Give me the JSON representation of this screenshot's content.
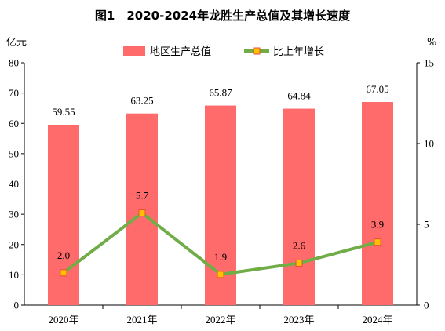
{
  "chart_data": {
    "type": "bar",
    "title": "图1　2020-2024年龙胜生产总值及其增长速度",
    "categories": [
      "2020年",
      "2021年",
      "2022年",
      "2023年",
      "2024年"
    ],
    "left_axis": {
      "unit": "亿元",
      "range": [
        0,
        80
      ],
      "ticks": [
        0,
        10,
        20,
        30,
        40,
        50,
        60,
        70,
        80
      ]
    },
    "right_axis": {
      "unit": "%",
      "range": [
        0,
        15
      ],
      "ticks": [
        0,
        5,
        10,
        15
      ]
    },
    "series": [
      {
        "name": "地区生产总值",
        "type": "bar",
        "axis": "left",
        "values": [
          59.55,
          63.25,
          65.87,
          64.84,
          67.05
        ],
        "labels": [
          "59.55",
          "63.25",
          "65.87",
          "64.84",
          "67.05"
        ]
      },
      {
        "name": "比上年增长",
        "type": "line",
        "axis": "right",
        "values": [
          2.0,
          5.7,
          1.9,
          2.6,
          3.9
        ],
        "labels": [
          "2.0",
          "5.7",
          "1.9",
          "2.6",
          "3.9"
        ]
      }
    ],
    "legend_position": "top-center",
    "grid": false,
    "colors": {
      "bar": "#ff6b6b",
      "line": "#70ad47",
      "marker_fill": "#ffc000",
      "marker_stroke": "#e84c3d"
    }
  }
}
